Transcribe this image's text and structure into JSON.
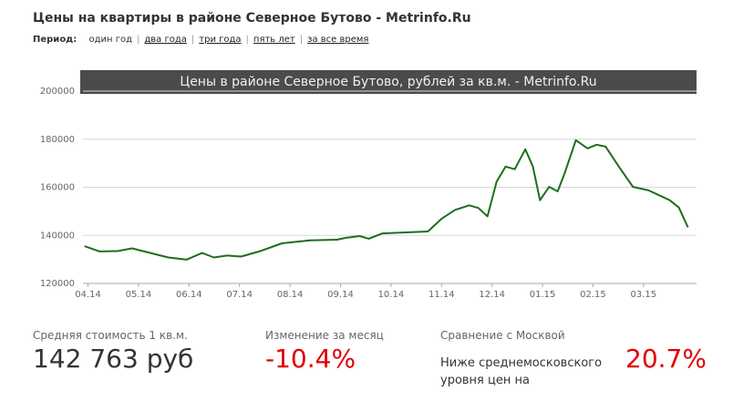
{
  "header": {
    "title": "Цены на квартиры в районе Северное Бутово - Metrinfo.Ru"
  },
  "period": {
    "label": "Период:",
    "current": "один год",
    "links": [
      "два года",
      "три года",
      "пять лет",
      "за все время"
    ]
  },
  "chart_data": {
    "type": "line",
    "title": "Цены в районе Северное Бутово, рублей за кв.м. - Metrinfo.Ru",
    "color": "#1d6e1d",
    "grid": true,
    "x": [
      -0.07,
      0.23,
      0.6,
      0.87,
      1.23,
      1.59,
      1.95,
      2.26,
      2.49,
      2.76,
      3.03,
      3.39,
      3.84,
      4.39,
      4.93,
      5.11,
      5.38,
      5.56,
      5.83,
      6.19,
      6.73,
      7.0,
      7.27,
      7.55,
      7.73,
      7.91,
      8.09,
      8.27,
      8.45,
      8.66,
      8.81,
      8.95,
      9.13,
      9.3,
      9.44,
      9.66,
      9.89,
      10.07,
      10.25,
      10.52,
      10.79,
      11.1,
      11.52,
      11.7,
      11.88
    ],
    "values": [
      135500,
      133300,
      133500,
      134600,
      132700,
      130800,
      129900,
      132700,
      130800,
      131600,
      131200,
      133300,
      136700,
      137900,
      138200,
      139000,
      139700,
      138600,
      140800,
      141100,
      141600,
      146900,
      150600,
      152500,
      151400,
      147900,
      162300,
      168600,
      167500,
      175800,
      168600,
      154600,
      160200,
      158300,
      165900,
      179600,
      176200,
      177700,
      176900,
      168300,
      160200,
      158700,
      154600,
      151600,
      143300
    ],
    "xlim": [
      -0.1,
      12.05
    ],
    "xticks": [
      {
        "value": 0,
        "label": "04.14"
      },
      {
        "value": 1,
        "label": "05.14"
      },
      {
        "value": 2,
        "label": "06.14"
      },
      {
        "value": 3,
        "label": "07.14"
      },
      {
        "value": 4,
        "label": "08.14"
      },
      {
        "value": 5,
        "label": "09.14"
      },
      {
        "value": 6,
        "label": "10.14"
      },
      {
        "value": 7,
        "label": "11.14"
      },
      {
        "value": 8,
        "label": "12.14"
      },
      {
        "value": 9,
        "label": "01.15"
      },
      {
        "value": 10,
        "label": "02.15"
      },
      {
        "value": 11,
        "label": "03.15"
      }
    ],
    "ylim": [
      120000,
      200000
    ],
    "yticks": [
      120000,
      140000,
      160000,
      180000,
      200000
    ]
  },
  "stats": [
    {
      "label": "Средняя стоимость 1 кв.м.",
      "value": "142 763 руб"
    },
    {
      "label": "Изменение за месяц",
      "value": "-10.4%"
    },
    {
      "label": "Сравнение с Москвой",
      "text": [
        "Ниже среднемосковского",
        "уровня цен на"
      ],
      "value": "20.7%"
    }
  ]
}
